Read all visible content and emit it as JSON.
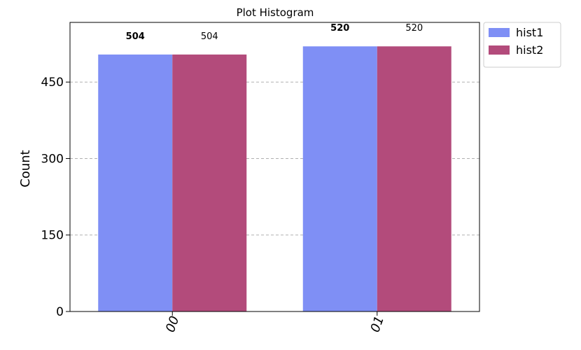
{
  "chart_data": {
    "type": "bar",
    "title": "Plot Histogram",
    "xlabel": "",
    "ylabel": "Count",
    "categories": [
      "00",
      "01"
    ],
    "series": [
      {
        "name": "hist1",
        "values": [
          504,
          520
        ],
        "color": "#7f8ff5"
      },
      {
        "name": "hist2",
        "values": [
          504,
          520
        ],
        "color": "#b34b7b"
      }
    ],
    "yticks": [
      "0",
      "150",
      "300",
      "450"
    ],
    "ylim": [
      0,
      567
    ],
    "grid": "horizontal-dashed",
    "legend_position": "outside-top-right",
    "data_labels": true
  }
}
